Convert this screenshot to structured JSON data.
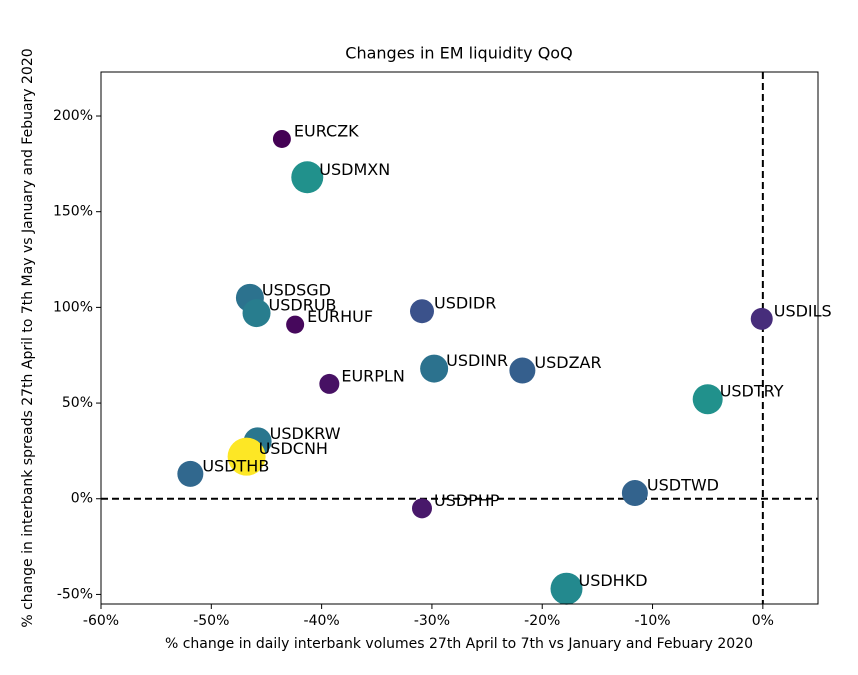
{
  "chart_data": {
    "type": "scatter",
    "title": "Changes in EM liquidity QoQ",
    "x_label": "% change in daily interbank volumes 27th April to 7th vs January and Febuary 2020",
    "y_label": "% change in interbank spreads 27th April to 7th May vs January and Febuary 2020",
    "labels": [
      "EURCZK",
      "USDMXN",
      "USDSGD",
      "USDRUB",
      "EURHUF",
      "USDIDR",
      "USDILS",
      "USDINR",
      "USDZAR",
      "EURPLN",
      "USDTRY",
      "USDKRW",
      "USDCNH",
      "USDTHB",
      "USDTWD",
      "USDPHP",
      "USDHKD"
    ],
    "x": [
      -43.6,
      -41.3,
      -46.5,
      -45.9,
      -42.4,
      -30.9,
      -0.1,
      -29.8,
      -21.8,
      -39.3,
      -5,
      -45.8,
      -46.8,
      -51.9,
      -11.6,
      -30.9,
      -17.8
    ],
    "values": [
      188,
      168,
      105,
      97,
      91,
      98,
      94,
      68,
      67,
      60,
      52,
      30,
      22,
      13,
      3,
      -5,
      -47
    ],
    "sizes": [
      9,
      16,
      14,
      14,
      9,
      12,
      11,
      14,
      13,
      10,
      15,
      14,
      19,
      13,
      13,
      10,
      16
    ],
    "colors": [
      "#440154",
      "#21918c",
      "#2c728e",
      "#287d8e",
      "#46085c",
      "#3b528b",
      "#472d7b",
      "#2c728e",
      "#355f8d",
      "#471164",
      "#21918c",
      "#2a768e",
      "#fde725",
      "#31688e",
      "#33638d",
      "#48186a",
      "#23898e"
    ],
    "xlim": [
      -60,
      5
    ],
    "ylim": [
      -55,
      223
    ],
    "xticks": [
      {
        "value": -60,
        "label": "-60%"
      },
      {
        "value": -50,
        "label": "-50%"
      },
      {
        "value": -40,
        "label": "-40%"
      },
      {
        "value": -30,
        "label": "-30%"
      },
      {
        "value": -20,
        "label": "-20%"
      },
      {
        "value": -10,
        "label": "-10%"
      },
      {
        "value": 0,
        "label": "0%"
      }
    ],
    "yticks": [
      {
        "value": -50,
        "label": "-50%"
      },
      {
        "value": 0,
        "label": "0%"
      },
      {
        "value": 50,
        "label": "50%"
      },
      {
        "value": 100,
        "label": "100%"
      },
      {
        "value": 150,
        "label": "150%"
      },
      {
        "value": 200,
        "label": "200%"
      }
    ],
    "hline": 0,
    "vline": 0
  }
}
